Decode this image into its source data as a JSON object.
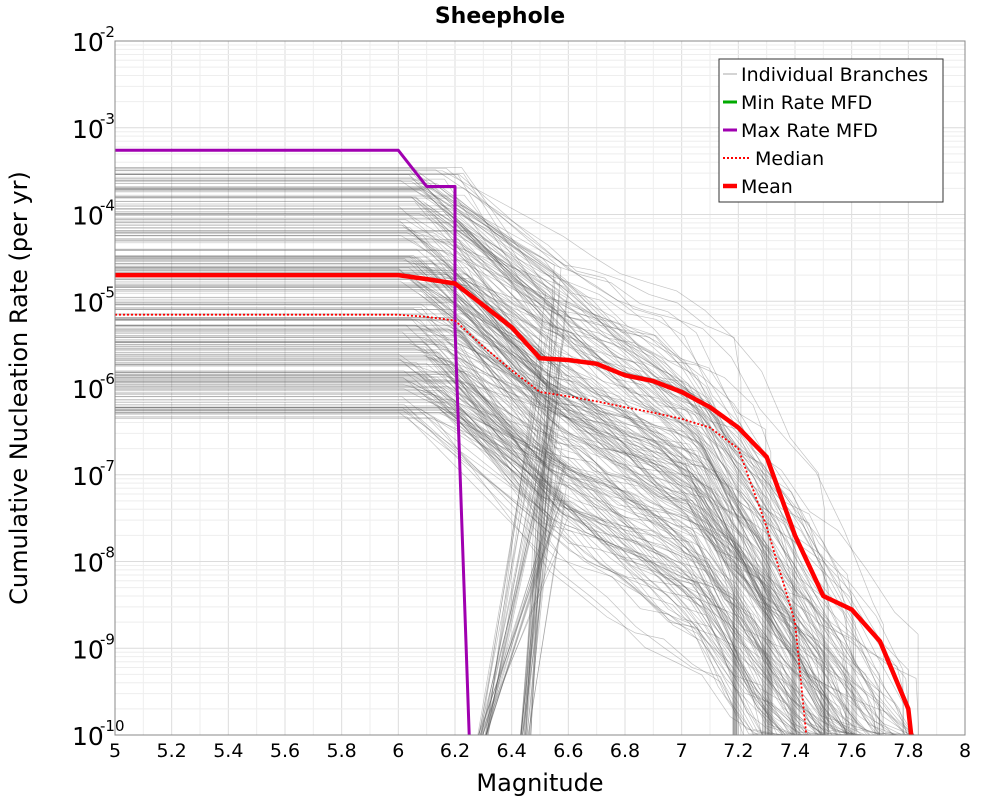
{
  "chart_data": {
    "type": "line",
    "title": "Sheephole",
    "xlabel": "Magnitude",
    "ylabel": "Cumulative Nucleation Rate (per yr)",
    "xlim": [
      5,
      8
    ],
    "ylim": [
      1e-10,
      0.01
    ],
    "yscale": "log",
    "grid": true,
    "legend_position": "top-right",
    "x_ticks": [
      "5",
      "5.2",
      "5.4",
      "5.6",
      "5.8",
      "6",
      "6.2",
      "6.4",
      "6.6",
      "6.8",
      "7",
      "7.2",
      "7.4",
      "7.6",
      "7.8",
      "8"
    ],
    "y_ticks": [
      {
        "base": "10",
        "exp": "-2",
        "value": 0.01
      },
      {
        "base": "10",
        "exp": "-3",
        "value": 0.001
      },
      {
        "base": "10",
        "exp": "-4",
        "value": 0.0001
      },
      {
        "base": "10",
        "exp": "-5",
        "value": 1e-05
      },
      {
        "base": "10",
        "exp": "-6",
        "value": 1e-06
      },
      {
        "base": "10",
        "exp": "-7",
        "value": 1e-07
      },
      {
        "base": "10",
        "exp": "-8",
        "value": 1e-08
      },
      {
        "base": "10",
        "exp": "-9",
        "value": 1e-09
      },
      {
        "base": "10",
        "exp": "-10",
        "value": 1e-10
      }
    ],
    "series": [
      {
        "name": "Individual Branches",
        "color": "#555555",
        "style": "thin",
        "approximate_count": 260,
        "rate_range_at_m5": [
          4.5e-07,
          0.00036
        ],
        "note_visible": "many gray curves"
      },
      {
        "name": "Min Rate MFD",
        "color": "#00aa00",
        "style": "solid",
        "x": [],
        "y": []
      },
      {
        "name": "Max Rate MFD",
        "color": "#a000b0",
        "style": "solid",
        "x": [
          5.0,
          6.0,
          6.1,
          6.2,
          6.2,
          6.25
        ],
        "y": [
          0.00055,
          0.00055,
          0.00021,
          0.00021,
          5e-06,
          1e-10
        ]
      },
      {
        "name": "Median",
        "color": "#ff0000",
        "style": "dotted",
        "x": [
          5.0,
          6.0,
          6.1,
          6.2,
          6.3,
          6.4,
          6.5,
          6.6,
          6.7,
          6.8,
          6.9,
          7.0,
          7.1,
          7.2,
          7.3,
          7.4,
          7.44
        ],
        "y": [
          7e-06,
          7e-06,
          6.6e-06,
          6e-06,
          3e-06,
          1.6e-06,
          9e-07,
          8e-07,
          7e-07,
          6e-07,
          5.2e-07,
          4.4e-07,
          3.5e-07,
          2e-07,
          2.5e-08,
          2e-09,
          1e-10
        ]
      },
      {
        "name": "Mean",
        "color": "#ff0000",
        "style": "thick",
        "x": [
          5.0,
          6.0,
          6.1,
          6.2,
          6.3,
          6.4,
          6.5,
          6.6,
          6.7,
          6.8,
          6.9,
          7.0,
          7.1,
          7.2,
          7.3,
          7.4,
          7.5,
          7.6,
          7.7,
          7.8,
          7.81
        ],
        "y": [
          2e-05,
          2e-05,
          1.8e-05,
          1.6e-05,
          9e-06,
          5e-06,
          2.2e-06,
          2.1e-06,
          1.9e-06,
          1.4e-06,
          1.2e-06,
          9e-07,
          6e-07,
          3.5e-07,
          1.6e-07,
          2e-08,
          4e-09,
          2.8e-09,
          1.2e-09,
          2e-10,
          1e-10
        ]
      }
    ]
  }
}
